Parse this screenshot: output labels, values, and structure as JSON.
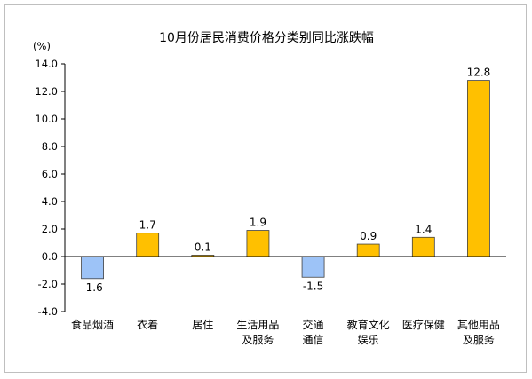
{
  "chart_data": {
    "type": "bar",
    "title": "10月份居民消费价格分类别同比涨跌幅",
    "unit_label": "(%)",
    "xlabel": "",
    "ylabel": "",
    "ylim": [
      -4.0,
      14.0
    ],
    "yticks": [
      "14.0",
      "12.0",
      "10.0",
      "8.0",
      "6.0",
      "4.0",
      "2.0",
      "0.0",
      "-2.0",
      "-4.0"
    ],
    "grid": false,
    "legend": "none",
    "categories": [
      [
        "食品烟酒"
      ],
      [
        "衣着"
      ],
      [
        "居住"
      ],
      [
        "生活用品",
        "及服务"
      ],
      [
        "交通",
        "通信"
      ],
      [
        "教育文化",
        "娱乐"
      ],
      [
        "医疗保健"
      ],
      [
        "其他用品",
        "及服务"
      ]
    ],
    "values": [
      -1.6,
      1.7,
      0.1,
      1.9,
      -1.5,
      0.9,
      1.4,
      12.8
    ],
    "value_labels": [
      "-1.6",
      "1.7",
      "0.1",
      "1.9",
      "-1.5",
      "0.9",
      "1.4",
      "12.8"
    ],
    "colors": {
      "positive": "#FFC000",
      "negative": "#9DC3F7",
      "bar_border": "#404040",
      "axis": "#000000"
    }
  }
}
